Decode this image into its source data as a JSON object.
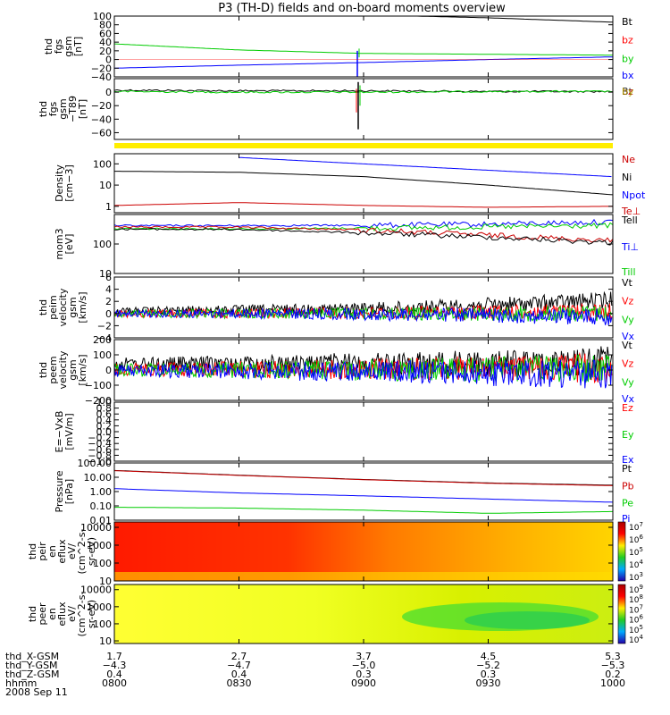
{
  "title": "P3 (TH-D) fields and on-board moments overview",
  "chart_data": [
    {
      "type": "line",
      "ylabel_lines": [
        "thd",
        "fgs",
        "gsm",
        "[nT]"
      ],
      "ylim": [
        -40,
        100
      ],
      "yticks": [
        "100",
        "80",
        "60",
        "40",
        "20",
        "0",
        "−20",
        "−40"
      ],
      "legend": [
        {
          "name": "Bt",
          "color": "#000000"
        },
        {
          "name": "bz",
          "color": "#ff0000"
        },
        {
          "name": "by",
          "color": "#00cc00"
        },
        {
          "name": "bx",
          "color": "#0000ff"
        }
      ],
      "series": [
        {
          "name": "Bt",
          "color": "#000000",
          "x": [
            "0800",
            "0830",
            "0900",
            "0930",
            "1000"
          ],
          "y": [
            110,
            107,
            103,
            96,
            86
          ]
        },
        {
          "name": "by",
          "color": "#00cc00",
          "x": [
            "0800",
            "0830",
            "0900",
            "0930",
            "1000"
          ],
          "y": [
            36,
            22,
            14,
            12,
            10
          ]
        },
        {
          "name": "bx",
          "color": "#0000ff",
          "x": [
            "0800",
            "0830",
            "0900",
            "0930",
            "1000"
          ],
          "y": [
            -20,
            -13,
            -7,
            0,
            6
          ]
        }
      ]
    },
    {
      "type": "line",
      "ylabel_lines": [
        "thd",
        "fgs",
        "gsm",
        "−T89",
        "[nT]"
      ],
      "ylim": [
        -70,
        20
      ],
      "yticks": [
        "−60",
        "−40",
        "−20",
        "0"
      ],
      "legend_overlap": [
        "Bt",
        "bz",
        "by"
      ],
      "series": [
        {
          "name": "Bt",
          "color": "#000000",
          "x": [
            "0800",
            "0830",
            "0900",
            "0930",
            "1000"
          ],
          "y": [
            3,
            2,
            2,
            1,
            1
          ]
        },
        {
          "name": "by",
          "color": "#00cc00",
          "x": [
            "0800",
            "0830",
            "0900",
            "0930",
            "1000"
          ],
          "y": [
            1,
            0,
            0,
            1,
            1
          ]
        }
      ]
    },
    {
      "type": "line",
      "ylabel_lines": [
        "Density",
        "[cm−3]"
      ],
      "yscale": "log",
      "ylim": [
        0.5,
        300
      ],
      "yticks": [
        "100",
        "10",
        "1"
      ],
      "legend": [
        {
          "name": "Ne",
          "color": "#cc0000"
        },
        {
          "name": "Ni",
          "color": "#000000"
        },
        {
          "name": "Npot",
          "color": "#0000ff"
        },
        {
          "name": "Te⊥",
          "color": "#cc0000"
        }
      ],
      "series": [
        {
          "name": "Ni",
          "color": "#000000",
          "x": [
            "0800",
            "0830",
            "0900",
            "0930",
            "1000"
          ],
          "y": [
            45,
            40,
            25,
            10,
            3.5
          ]
        },
        {
          "name": "Npot",
          "color": "#0000ff",
          "x": [
            "0830",
            "0900",
            "0930",
            "1000"
          ],
          "y": [
            200,
            100,
            50,
            25
          ]
        },
        {
          "name": "Ne",
          "color": "#cc0000",
          "x": [
            "0800",
            "0830",
            "0900",
            "0930",
            "1000"
          ],
          "y": [
            1.1,
            1.5,
            1.1,
            0.9,
            1.0
          ]
        }
      ]
    },
    {
      "type": "line",
      "ylabel_lines": [
        "mom3",
        "[eV]"
      ],
      "yscale": "log",
      "ylim": [
        10,
        1000
      ],
      "yticks": [
        "100",
        "10"
      ],
      "legend": [
        {
          "name": "Tell",
          "color": "#000000"
        },
        {
          "name": "Ti⊥",
          "color": "#0000ff"
        },
        {
          "name": "Till",
          "color": "#00cc00"
        }
      ],
      "series": [
        {
          "name": "Ti⊥",
          "color": "#0000ff",
          "x": [
            "0800",
            "0830",
            "0900",
            "0930",
            "1000"
          ],
          "y": [
            420,
            420,
            430,
            470,
            560
          ]
        },
        {
          "name": "Till",
          "color": "#00cc00",
          "x": [
            "0800",
            "0830",
            "0900",
            "0930",
            "1000"
          ],
          "y": [
            330,
            330,
            340,
            380,
            420
          ]
        },
        {
          "name": "Te⊥",
          "color": "#cc0000",
          "x": [
            "0800",
            "0830",
            "0900",
            "0930",
            "1000"
          ],
          "y": [
            380,
            370,
            300,
            200,
            130
          ]
        },
        {
          "name": "Tell",
          "color": "#000000",
          "x": [
            "0800",
            "0830",
            "0900",
            "0930",
            "1000"
          ],
          "y": [
            320,
            310,
            240,
            170,
            110
          ]
        }
      ]
    },
    {
      "type": "line",
      "ylabel_lines": [
        "thd",
        "peim",
        "velocity",
        "gsm",
        "[km/s]"
      ],
      "ylim": [
        -4,
        6
      ],
      "yticks": [
        "6",
        "4",
        "2",
        "0",
        "−2",
        "−4"
      ],
      "legend": [
        {
          "name": "Vt",
          "color": "#000000"
        },
        {
          "name": "Vz",
          "color": "#ff0000"
        },
        {
          "name": "Vy",
          "color": "#00cc00"
        },
        {
          "name": "Vx",
          "color": "#0000ff"
        }
      ],
      "series": [
        {
          "name": "Vt",
          "color": "#000000",
          "x": [
            "0800",
            "0830",
            "0900",
            "0930",
            "1000"
          ],
          "y": [
            0.4,
            0.6,
            0.8,
            1.4,
            2.2
          ]
        },
        {
          "name": "Vz",
          "color": "#ff0000",
          "x": [
            "0800",
            "0830",
            "0900",
            "0930",
            "1000"
          ],
          "y": [
            0,
            0,
            0.1,
            0.2,
            0.3
          ]
        },
        {
          "name": "Vy",
          "color": "#00cc00",
          "x": [
            "0800",
            "0830",
            "0900",
            "0930",
            "1000"
          ],
          "y": [
            0,
            0,
            0,
            0,
            0
          ]
        },
        {
          "name": "Vx",
          "color": "#0000ff",
          "x": [
            "0800",
            "0830",
            "0900",
            "0930",
            "1000"
          ],
          "y": [
            0,
            0,
            -0.1,
            -0.3,
            -0.6
          ]
        }
      ]
    },
    {
      "type": "line",
      "ylabel_lines": [
        "thd",
        "peem",
        "velocity",
        "gsm",
        "[km/s]"
      ],
      "ylim": [
        -200,
        200
      ],
      "yticks": [
        "200",
        "100",
        "0",
        "−100",
        "−200"
      ],
      "legend": [
        {
          "name": "Vt",
          "color": "#000000"
        },
        {
          "name": "Vz",
          "color": "#ff0000"
        },
        {
          "name": "Vy",
          "color": "#00cc00"
        },
        {
          "name": "Vx",
          "color": "#0000ff"
        }
      ],
      "series": [
        {
          "name": "Vt",
          "color": "#000000",
          "x": [
            "0800",
            "0830",
            "0900",
            "0930",
            "1000"
          ],
          "y": [
            40,
            40,
            45,
            45,
            60
          ]
        },
        {
          "name": "Vz",
          "color": "#ff0000",
          "x": [
            "0800",
            "0830",
            "0900",
            "0930",
            "1000"
          ],
          "y": [
            5,
            5,
            5,
            10,
            15
          ]
        },
        {
          "name": "Vy",
          "color": "#00cc00",
          "x": [
            "0800",
            "0830",
            "0900",
            "0930",
            "1000"
          ],
          "y": [
            0,
            0,
            0,
            5,
            5
          ]
        },
        {
          "name": "Vx",
          "color": "#0000ff",
          "x": [
            "0800",
            "0830",
            "0900",
            "0930",
            "1000"
          ],
          "y": [
            -5,
            -5,
            -10,
            -20,
            -30
          ]
        }
      ]
    },
    {
      "type": "line",
      "ylabel_lines": [
        "E=−VxB",
        "[mV/m]"
      ],
      "ylim": [
        -1,
        1
      ],
      "yticks": [
        "1.0",
        "0.8",
        "0.6",
        "0.4",
        "0.2",
        "0.0",
        "−0.2",
        "−0.4",
        "−0.6",
        "−0.8",
        "−1.0"
      ],
      "legend": [
        {
          "name": "Ez",
          "color": "#ff0000"
        },
        {
          "name": "Ey",
          "color": "#00cc00"
        },
        {
          "name": "Ex",
          "color": "#0000ff"
        }
      ],
      "series": []
    },
    {
      "type": "line",
      "ylabel_lines": [
        "Pressure",
        "[nPa]"
      ],
      "yscale": "log",
      "ylim": [
        0.01,
        100
      ],
      "yticks": [
        "100.00",
        "10.00",
        "1.00",
        "0.10",
        "0.01"
      ],
      "legend": [
        {
          "name": "Pt",
          "color": "#000000"
        },
        {
          "name": "Pb",
          "color": "#cc0000"
        },
        {
          "name": "Pe",
          "color": "#00cc00"
        },
        {
          "name": "Pi",
          "color": "#0000ff"
        }
      ],
      "series": [
        {
          "name": "Pt",
          "color": "#000000",
          "x": [
            "0800",
            "0830",
            "0900",
            "0930",
            "1000"
          ],
          "y": [
            30,
            14,
            7,
            4,
            2.8
          ]
        },
        {
          "name": "Pb",
          "color": "#cc0000",
          "x": [
            "0800",
            "0830",
            "0900",
            "0930",
            "1000"
          ],
          "y": [
            29,
            13.5,
            6.8,
            3.8,
            2.6
          ]
        },
        {
          "name": "Pi",
          "color": "#0000ff",
          "x": [
            "0800",
            "0830",
            "0900",
            "0930",
            "1000"
          ],
          "y": [
            1.6,
            0.8,
            0.5,
            0.3,
            0.18
          ]
        },
        {
          "name": "Pe",
          "color": "#00cc00",
          "x": [
            "0800",
            "0830",
            "0900",
            "0930",
            "1000"
          ],
          "y": [
            0.08,
            0.07,
            0.05,
            0.03,
            0.04
          ]
        }
      ]
    },
    {
      "type": "heatmap",
      "ylabel_lines": [
        "thd",
        "peir",
        "en",
        "eflux",
        "eV/",
        "(cm^2-s-",
        "sr-eV)"
      ],
      "yscale": "log",
      "ylim": [
        10,
        20000
      ],
      "yticks": [
        "10000",
        "1000",
        "100",
        "10"
      ],
      "colorbar_ticks": [
        "10^7",
        "10^6",
        "10^5",
        "10^4",
        "10^3"
      ],
      "note": "high flux (red) at all energies early; decreasing to orange/yellow after 0900"
    },
    {
      "type": "heatmap",
      "ylabel_lines": [
        "thd",
        "peer",
        "en",
        "eflux",
        "eV/",
        "(cm^2-s-",
        "sr-eV)"
      ],
      "yscale": "log",
      "ylim": [
        7,
        20000
      ],
      "yticks": [
        "10000",
        "1000",
        "100",
        "10"
      ],
      "colorbar_ticks": [
        "10^9",
        "10^8",
        "10^7",
        "10^6",
        "10^5",
        "10^4"
      ],
      "note": "yellow background; green band near 100-1000 eV after 0900"
    }
  ],
  "xaxis": {
    "rows": [
      {
        "label": "thd_X-GSM",
        "values": [
          "1.7",
          "2.7",
          "3.7",
          "4.5",
          "5.3"
        ]
      },
      {
        "label": "thd_Y-GSM",
        "values": [
          "−4.3",
          "−4.7",
          "−5.0",
          "−5.2",
          "−5.3"
        ]
      },
      {
        "label": "thd_Z-GSM",
        "values": [
          "0.4",
          "0.4",
          "0.3",
          "0.3",
          "0.2"
        ]
      },
      {
        "label": "hhmm",
        "values": [
          "0800",
          "0830",
          "0900",
          "0930",
          "1000"
        ]
      }
    ],
    "date": "2008 Sep 11"
  },
  "colors": {
    "yellow_bar": "#ffee00"
  }
}
